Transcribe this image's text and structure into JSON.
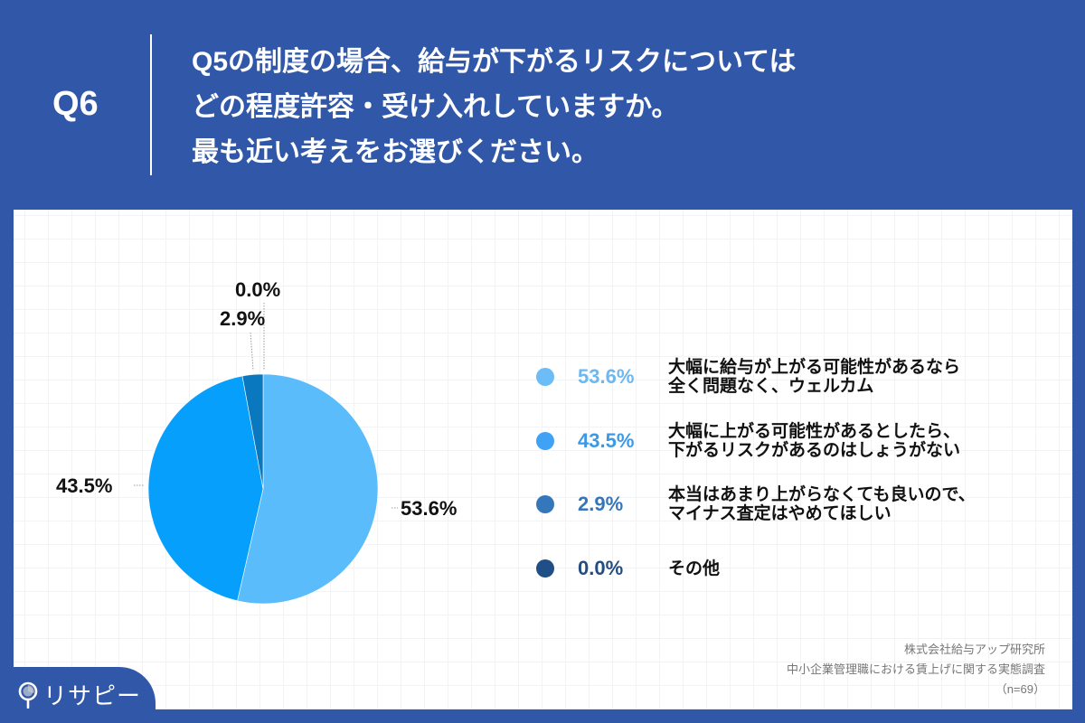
{
  "header": {
    "question_number": "Q6",
    "title_lines": [
      "Q5の制度の場合、給与が下がるリスクについては",
      "どの程度許容・受け入れしていますか。",
      "最も近い考えをお選びください。"
    ]
  },
  "colors": {
    "background": "#3158a8",
    "panel": "#ffffff",
    "slice_1": "#5bbcfc",
    "slice_2": "#079ffc",
    "slice_3": "#0a78bf",
    "slice_4": "#1d4f86",
    "legend_pct_1": "#6cb8f0",
    "legend_pct_2": "#3a9ae8",
    "legend_pct_3": "#3575b8",
    "legend_pct_4": "#234d80"
  },
  "chart_data": {
    "type": "pie",
    "title": "Q5の制度の場合、給与が下がるリスクについてはどの程度許容・受け入れしていますか。最も近い考えをお選びください。",
    "categories": [
      "大幅に給与が上がる可能性があるなら全く問題なく、ウェルカム",
      "大幅に上がる可能性があるとしたら、下がるリスクがあるのはしょうがない",
      "本当はあまり上がらなくても良いので、マイナス査定はやめてほしい",
      "その他"
    ],
    "values": [
      53.6,
      43.5,
      2.9,
      0.0
    ],
    "unit": "%",
    "slice_labels": [
      "53.6%",
      "43.5%",
      "2.9%",
      "0.0%"
    ],
    "start_angle": "12 o'clock, clockwise",
    "legend_position": "right",
    "sample_size": "n=69"
  },
  "legend": {
    "items": [
      {
        "pct": "53.6%",
        "lines": [
          "大幅に給与が上がる可能性があるなら",
          "全く問題なく、ウェルカム"
        ]
      },
      {
        "pct": "43.5%",
        "lines": [
          "大幅に上がる可能性があるとしたら、",
          "下がるリスクがあるのはしょうがない"
        ]
      },
      {
        "pct": "2.9%",
        "lines": [
          "本当はあまり上がらなくても良いので、",
          "マイナス査定はやめてほしい"
        ]
      },
      {
        "pct": "0.0%",
        "lines": [
          "その他"
        ]
      }
    ]
  },
  "source": {
    "company": "株式会社給与アップ研究所",
    "survey": "中小企業管理職における賃上げに関する実態調査",
    "sample": "（n=69）"
  },
  "logo": {
    "text": "リサピー",
    "icon": "pin-icon"
  }
}
